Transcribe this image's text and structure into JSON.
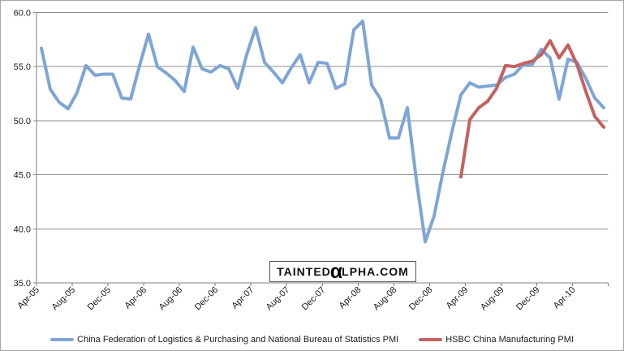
{
  "chart_data": {
    "type": "line",
    "title": "",
    "xlabel": "",
    "ylabel": "",
    "ylim": [
      35,
      60
    ],
    "grid": true,
    "legend_position": "bottom",
    "y_tick_labels": [
      "60.0",
      "55.0",
      "50.0",
      "45.0",
      "40.0",
      "35.0"
    ],
    "x_tick_labels": [
      "Apr-05",
      "Aug-05",
      "Dec-05",
      "Apr-06",
      "Aug-06",
      "Dec-06",
      "Apr-07",
      "Aug-07",
      "Dec-07",
      "Apr-08",
      "Aug-08",
      "Dec-08",
      "Apr-09",
      "Aug-09",
      "Dec-09",
      "Apr-10"
    ],
    "categories": [
      "Apr-05",
      "May-05",
      "Jun-05",
      "Jul-05",
      "Aug-05",
      "Sep-05",
      "Oct-05",
      "Nov-05",
      "Dec-05",
      "Jan-06",
      "Feb-06",
      "Mar-06",
      "Apr-06",
      "May-06",
      "Jun-06",
      "Jul-06",
      "Aug-06",
      "Sep-06",
      "Oct-06",
      "Nov-06",
      "Dec-06",
      "Jan-07",
      "Feb-07",
      "Mar-07",
      "Apr-07",
      "May-07",
      "Jun-07",
      "Jul-07",
      "Aug-07",
      "Sep-07",
      "Oct-07",
      "Nov-07",
      "Dec-07",
      "Jan-08",
      "Feb-08",
      "Mar-08",
      "Apr-08",
      "May-08",
      "Jun-08",
      "Jul-08",
      "Aug-08",
      "Sep-08",
      "Oct-08",
      "Nov-08",
      "Dec-08",
      "Jan-09",
      "Feb-09",
      "Mar-09",
      "Apr-09",
      "May-09",
      "Jun-09",
      "Jul-09",
      "Aug-09",
      "Sep-09",
      "Oct-09",
      "Nov-09",
      "Dec-09",
      "Jan-10",
      "Feb-10",
      "Mar-10",
      "Apr-10",
      "May-10",
      "Jun-10",
      "Jul-10"
    ],
    "series": [
      {
        "key": "cflp-nbs-pmi",
        "name": "China Federation of Logistics & Purchasing and National Bureau of Statistics PMI",
        "color": "#7FA5D6",
        "start_index": 0,
        "values": [
          56.7,
          52.9,
          51.7,
          51.1,
          52.6,
          55.1,
          54.2,
          54.3,
          54.3,
          52.1,
          52.0,
          55.1,
          58.0,
          55.0,
          54.4,
          53.7,
          52.7,
          56.8,
          54.8,
          54.5,
          55.1,
          54.8,
          53.0,
          56.1,
          58.6,
          55.4,
          54.5,
          53.5,
          54.9,
          56.1,
          53.5,
          55.4,
          55.3,
          53.0,
          53.4,
          58.4,
          59.2,
          53.3,
          52.0,
          48.4,
          48.4,
          51.2,
          44.6,
          38.8,
          41.2,
          45.3,
          49.0,
          52.4,
          53.5,
          53.1,
          53.2,
          53.3,
          54.0,
          54.3,
          55.2,
          55.2,
          56.6,
          55.8,
          52.0,
          55.7,
          55.4,
          53.9,
          52.1,
          51.2
        ]
      },
      {
        "key": "hsbc-pmi",
        "name": "HSBC China Manufacturing PMI",
        "color": "#C4625E",
        "start_index": 47,
        "values": [
          44.8,
          50.1,
          51.2,
          51.8,
          53.0,
          55.1,
          55.0,
          55.3,
          55.5,
          56.1,
          57.4,
          55.8,
          57.0,
          55.2,
          52.7,
          50.4,
          49.4
        ]
      }
    ]
  },
  "watermark": {
    "prefix": "TAINTED",
    "alpha": "α",
    "suffix": "LPHA.COM",
    "alpha_color": "#1F9CD9"
  }
}
